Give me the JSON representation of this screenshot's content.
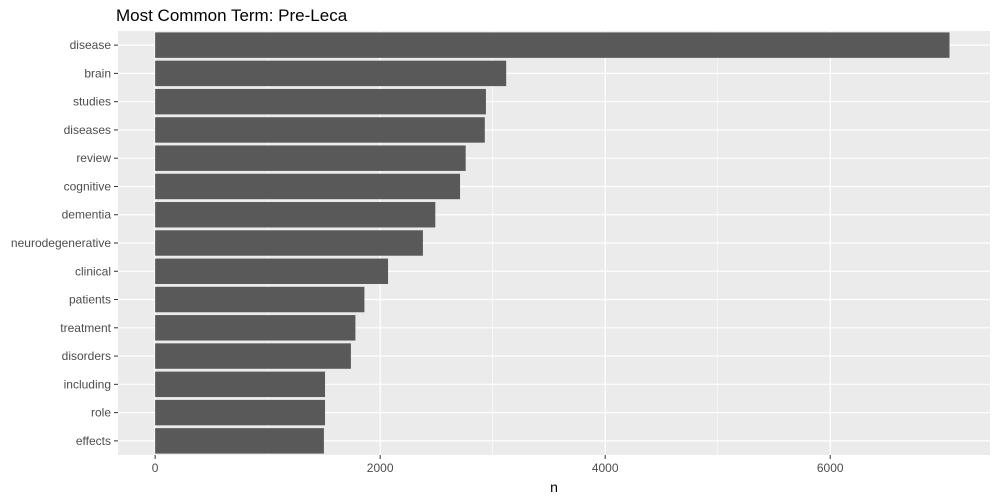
{
  "chart_data": {
    "type": "bar",
    "orientation": "horizontal",
    "title": "Most Common Term: Pre-Leca",
    "xlabel": "n",
    "ylabel": "",
    "categories": [
      "disease",
      "brain",
      "studies",
      "diseases",
      "review",
      "cognitive",
      "dementia",
      "neurodegenerative",
      "clinical",
      "patients",
      "treatment",
      "disorders",
      "including",
      "role",
      "effects"
    ],
    "values": [
      7060,
      3120,
      2940,
      2930,
      2760,
      2710,
      2490,
      2380,
      2070,
      1860,
      1780,
      1740,
      1510,
      1510,
      1500
    ],
    "xlim": [
      -330,
      7420
    ],
    "xticks": [
      0,
      2000,
      4000,
      6000
    ],
    "xtick_labels": [
      "0",
      "2000",
      "4000",
      "6000"
    ],
    "grid": true,
    "colors": {
      "bar": "#595959",
      "panel": "#ebebeb",
      "grid": "#ffffff"
    }
  }
}
